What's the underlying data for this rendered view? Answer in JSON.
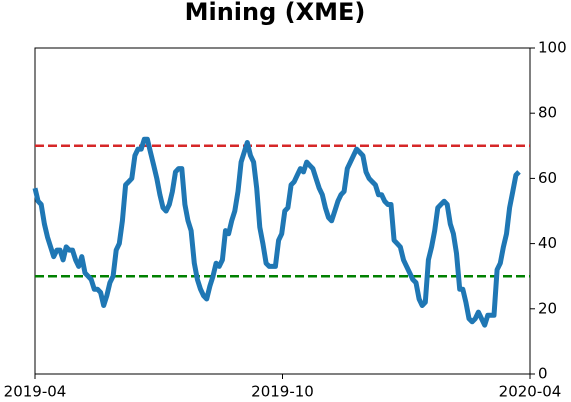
{
  "chart_data": {
    "type": "line",
    "title": "Mining (XME)",
    "xlim": [
      "2019-04",
      "2020-04"
    ],
    "xticks": [
      "2019-04",
      "2019-10",
      "2020-04"
    ],
    "ylim": [
      0,
      100
    ],
    "yticks": [
      0,
      20,
      40,
      60,
      80,
      100
    ],
    "y_axis_side": "right",
    "hlines": [
      {
        "value": 70,
        "color": "#d62728"
      },
      {
        "value": 30,
        "color": "#008000"
      }
    ],
    "series": [
      {
        "color": "#1f77b4",
        "values": [
          57,
          53,
          52,
          46,
          42,
          39,
          36,
          38,
          38,
          35,
          39,
          38,
          38,
          35,
          33,
          36,
          31,
          30,
          29,
          26,
          26,
          25,
          21,
          24,
          28,
          30,
          38,
          40,
          47,
          58,
          59,
          60,
          67,
          69,
          69,
          72,
          72,
          68,
          64,
          60,
          55,
          51,
          50,
          52,
          56,
          62,
          63,
          63,
          52,
          47,
          44,
          34,
          29,
          26,
          24,
          23,
          27,
          30,
          34,
          33,
          35,
          44,
          43,
          47,
          50,
          56,
          65,
          68,
          71,
          67,
          65,
          57,
          45,
          40,
          34,
          33,
          33,
          33,
          41,
          43,
          50,
          51,
          58,
          59,
          61,
          63,
          62,
          65,
          64,
          63,
          60,
          57,
          55,
          51,
          48,
          47,
          50,
          53,
          55,
          56,
          63,
          65,
          67,
          69,
          68,
          67,
          62,
          60,
          59,
          58,
          55,
          55,
          53,
          52,
          52,
          41,
          40,
          39,
          35,
          33,
          31,
          29,
          28,
          23,
          21,
          22,
          35,
          39,
          44,
          51,
          52,
          53,
          52,
          46,
          43,
          37,
          26,
          26,
          22,
          17,
          16,
          17,
          19,
          17,
          15,
          18,
          18,
          18,
          32,
          34,
          39,
          43,
          51,
          56,
          61,
          62
        ]
      }
    ]
  }
}
